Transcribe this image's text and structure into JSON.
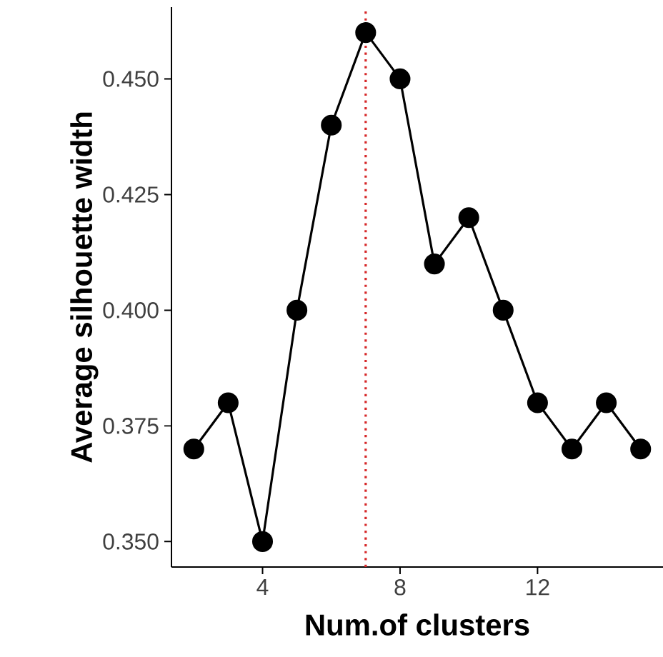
{
  "chart_data": {
    "type": "line",
    "xlabel": "Num.of clusters",
    "ylabel": "Average silhouette width",
    "x": [
      2,
      3,
      4,
      5,
      6,
      7,
      8,
      9,
      10,
      11,
      12,
      13,
      14,
      15
    ],
    "values": [
      0.37,
      0.38,
      0.35,
      0.4,
      0.44,
      0.46,
      0.45,
      0.41,
      0.42,
      0.4,
      0.38,
      0.37,
      0.38,
      0.37
    ],
    "color": "#000000",
    "marker": "circle",
    "line_style": "solid",
    "xlim": [
      1.35,
      15.65
    ],
    "ylim": [
      0.3445,
      0.4655
    ],
    "xticks": [
      4,
      8,
      12
    ],
    "yticks": [
      {
        "value": 0.35,
        "label": "0.350"
      },
      {
        "value": 0.375,
        "label": "0.375"
      },
      {
        "value": 0.4,
        "label": "0.400"
      },
      {
        "value": 0.425,
        "label": "0.425"
      },
      {
        "value": 0.45,
        "label": "0.450"
      }
    ],
    "ref_lines": [
      {
        "axis": "x",
        "value": 7,
        "color": "#d62728",
        "line_style": "dotted"
      }
    ]
  }
}
